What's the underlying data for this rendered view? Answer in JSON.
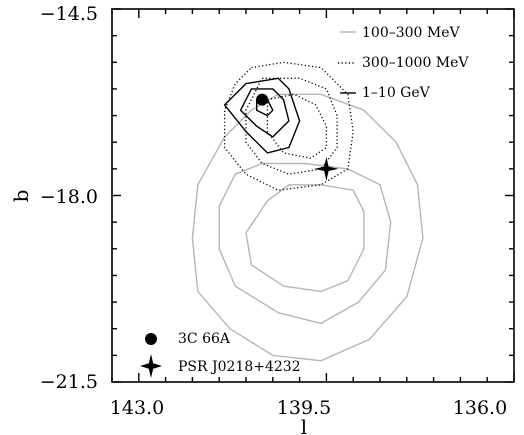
{
  "chart_data": {
    "type": "contour",
    "xlabel": "l",
    "ylabel": "b",
    "x_ticks": [
      143.0,
      139.5,
      136.0
    ],
    "y_ticks": [
      -14.5,
      -18.0,
      -21.5
    ],
    "x_tick_labels": [
      "143.0",
      "139.5",
      "136.0"
    ],
    "y_tick_labels": [
      "−14.5",
      "−18.0",
      "−21.5"
    ],
    "xlim": [
      143.5,
      136.0
    ],
    "ylim": [
      -21.5,
      -14.5
    ],
    "x_reversed": true,
    "legend_position": "top-right",
    "series": [
      {
        "name": "100–300 MeV",
        "color": "#b5b5b5",
        "style": "solid",
        "contours": [
          [
            [
              140.6,
              -18.1
            ],
            [
              140.2,
              -17.8
            ],
            [
              139.6,
              -17.8
            ],
            [
              139.0,
              -17.9
            ],
            [
              138.8,
              -18.3
            ],
            [
              138.8,
              -19.0
            ],
            [
              139.1,
              -19.6
            ],
            [
              139.6,
              -19.8
            ],
            [
              140.3,
              -19.7
            ],
            [
              140.9,
              -19.3
            ],
            [
              141.0,
              -18.7
            ],
            [
              140.6,
              -18.1
            ]
          ],
          [
            [
              140.7,
              -17.4
            ],
            [
              139.9,
              -17.4
            ],
            [
              139.1,
              -17.5
            ],
            [
              138.5,
              -17.8
            ],
            [
              138.3,
              -18.5
            ],
            [
              138.4,
              -19.4
            ],
            [
              138.9,
              -20.0
            ],
            [
              139.6,
              -20.4
            ],
            [
              140.4,
              -20.2
            ],
            [
              141.2,
              -19.7
            ],
            [
              141.5,
              -19.0
            ],
            [
              141.5,
              -18.2
            ],
            [
              141.2,
              -17.6
            ],
            [
              140.7,
              -17.4
            ]
          ],
          [
            [
              140.4,
              -16.1
            ],
            [
              139.6,
              -16.1
            ],
            [
              138.8,
              -16.4
            ],
            [
              138.2,
              -17.0
            ],
            [
              137.8,
              -17.8
            ],
            [
              137.7,
              -18.8
            ],
            [
              138.0,
              -19.9
            ],
            [
              138.7,
              -20.7
            ],
            [
              139.6,
              -21.1
            ],
            [
              140.5,
              -21.0
            ],
            [
              141.3,
              -20.5
            ],
            [
              141.9,
              -19.8
            ],
            [
              142.0,
              -18.8
            ],
            [
              141.9,
              -17.8
            ],
            [
              141.4,
              -16.9
            ],
            [
              140.9,
              -16.4
            ],
            [
              140.4,
              -16.1
            ]
          ]
        ]
      },
      {
        "name": "300–1000 MeV",
        "color": "#000000",
        "style": "dotted",
        "contours": [
          [
            [
              140.6,
              -16.2
            ],
            [
              140.1,
              -16.1
            ],
            [
              139.7,
              -16.3
            ],
            [
              139.5,
              -16.7
            ],
            [
              139.5,
              -17.1
            ],
            [
              139.8,
              -17.3
            ],
            [
              140.3,
              -17.2
            ],
            [
              140.6,
              -16.8
            ],
            [
              140.6,
              -16.2
            ]
          ],
          [
            [
              140.7,
              -15.8
            ],
            [
              140.0,
              -15.8
            ],
            [
              139.5,
              -16.0
            ],
            [
              139.3,
              -16.5
            ],
            [
              139.3,
              -17.1
            ],
            [
              139.6,
              -17.5
            ],
            [
              140.2,
              -17.6
            ],
            [
              140.7,
              -17.4
            ],
            [
              141.0,
              -17.0
            ],
            [
              141.0,
              -16.4
            ],
            [
              140.7,
              -15.8
            ]
          ],
          [
            [
              140.9,
              -15.6
            ],
            [
              140.3,
              -15.5
            ],
            [
              139.6,
              -15.6
            ],
            [
              139.1,
              -16.1
            ],
            [
              139.0,
              -16.8
            ],
            [
              139.1,
              -17.5
            ],
            [
              139.6,
              -17.8
            ],
            [
              140.4,
              -17.9
            ],
            [
              141.0,
              -17.6
            ],
            [
              141.4,
              -17.1
            ],
            [
              141.4,
              -16.4
            ],
            [
              141.2,
              -15.9
            ],
            [
              140.9,
              -15.6
            ]
          ]
        ]
      },
      {
        "name": "1–10 GeV",
        "color": "#000000",
        "style": "solid",
        "contours": [
          [
            [
              140.8,
              -16.2
            ],
            [
              140.6,
              -16.2
            ],
            [
              140.5,
              -16.4
            ],
            [
              140.6,
              -16.5
            ],
            [
              140.8,
              -16.4
            ],
            [
              140.8,
              -16.2
            ]
          ],
          [
            [
              140.9,
              -16.0
            ],
            [
              140.5,
              -16.0
            ],
            [
              140.3,
              -16.2
            ],
            [
              140.2,
              -16.6
            ],
            [
              140.5,
              -16.9
            ],
            [
              140.8,
              -16.7
            ],
            [
              141.1,
              -16.4
            ],
            [
              140.9,
              -16.0
            ]
          ],
          [
            [
              141.0,
              -15.9
            ],
            [
              140.4,
              -15.8
            ],
            [
              140.2,
              -16.0
            ],
            [
              140.0,
              -16.6
            ],
            [
              140.2,
              -17.1
            ],
            [
              140.6,
              -17.2
            ],
            [
              141.0,
              -16.8
            ],
            [
              141.4,
              -16.3
            ],
            [
              141.0,
              -15.9
            ]
          ]
        ]
      }
    ],
    "markers": [
      {
        "name": "3C 66A",
        "l": 140.7,
        "b": -16.2,
        "symbol": "filled-circle"
      },
      {
        "name": "PSR J0218+4232",
        "l": 139.5,
        "b": -17.5,
        "symbol": "four-point-star"
      }
    ]
  }
}
